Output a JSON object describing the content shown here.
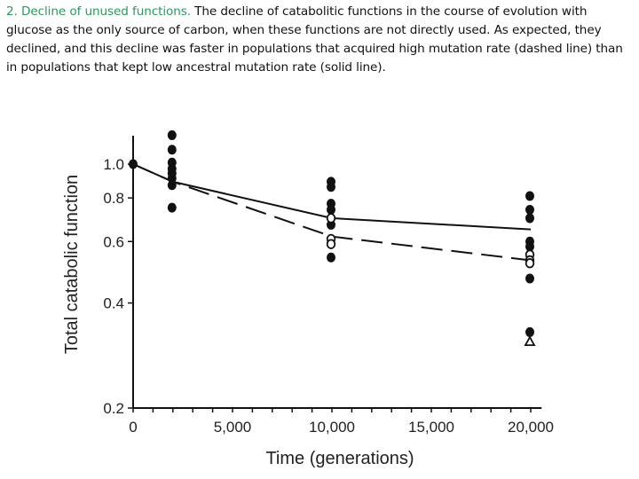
{
  "caption": {
    "lead": "2. Decline of unused functions.",
    "body": " The decline of catabolitic functions in the course of evolution with glucose as the only source of carbon, when these functions are not directly used. As expected, they declined, and this decline was faster in populations that acquired high mutation rate (dashed line) than in populations that kept low ancestral mutation rate (solid line).",
    "lead_color": "#2a9a5c"
  },
  "chart_data": {
    "type": "scatter",
    "title": "",
    "xlabel": "Time (generations)",
    "ylabel": "Total catabolic function",
    "xlim": [
      0,
      20500
    ],
    "ylim": [
      0.2,
      1.25
    ],
    "y_scale": "log",
    "grid": false,
    "legend": "none (described in caption: dashed = high mutation rate, solid = low ancestral mutation rate)",
    "x_ticks": [
      0,
      5000,
      10000,
      15000,
      20000
    ],
    "x_tick_labels": [
      "0",
      "5,000",
      "10,000",
      "15,000",
      "20,000"
    ],
    "x_minor_tick_step": 1000,
    "y_ticks": [
      0.2,
      0.4,
      0.6,
      0.8,
      1.0
    ],
    "y_tick_labels": [
      "0.2",
      "0.4",
      "0.6",
      "0.8",
      "1.0"
    ],
    "series": [
      {
        "name": "Low mutation rate populations (mean)",
        "style": "solid line",
        "x": [
          0,
          2000,
          10000,
          20000
        ],
        "y": [
          1.0,
          0.89,
          0.7,
          0.65
        ]
      },
      {
        "name": "High mutation rate populations (mean)",
        "style": "dashed line",
        "x": [
          0,
          2000,
          10000,
          20000
        ],
        "y": [
          1.0,
          0.89,
          0.62,
          0.53
        ]
      },
      {
        "name": "Individual populations (filled circles)",
        "marker": "filled-circle",
        "x": [
          0,
          2000,
          2000,
          2000,
          2000,
          2000,
          2000,
          2000,
          2000,
          10000,
          10000,
          10000,
          10000,
          10000,
          10000,
          20000,
          20000,
          20000,
          20000,
          20000,
          20000,
          20000
        ],
        "y": [
          1.0,
          1.21,
          1.1,
          1.01,
          0.97,
          0.94,
          0.91,
          0.87,
          0.75,
          0.89,
          0.86,
          0.77,
          0.74,
          0.67,
          0.54,
          0.81,
          0.74,
          0.7,
          0.6,
          0.58,
          0.47,
          0.33
        ]
      },
      {
        "name": "Individual populations (open circles)",
        "marker": "open-circle",
        "x": [
          10000,
          10000,
          10000,
          20000,
          20000,
          20000
        ],
        "y": [
          0.7,
          0.61,
          0.59,
          0.55,
          0.53,
          0.52
        ]
      },
      {
        "name": "Individual population (open triangle)",
        "marker": "open-triangle",
        "x": [
          20000
        ],
        "y": [
          0.31
        ]
      }
    ]
  }
}
